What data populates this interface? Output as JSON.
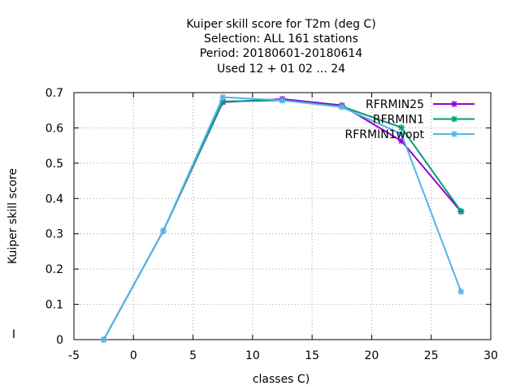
{
  "chart_data": {
    "type": "line",
    "title_lines": [
      "Kuiper skill score  for T2m (deg C)",
      "Selection: ALL    161 stations",
      "Period: 20180601-20180614",
      "Used  12 + 01 02 ... 24"
    ],
    "xlabel": "classes C)",
    "ylabel": "Kuiper skill score",
    "side_mark": "I",
    "xlim": [
      -5,
      30
    ],
    "ylim": [
      0,
      0.7
    ],
    "xticks": [
      -5,
      0,
      5,
      10,
      15,
      20,
      25,
      30
    ],
    "yticks": [
      0,
      0.1,
      0.2,
      0.3,
      0.4,
      0.5,
      0.6,
      0.7
    ],
    "xtick_labels": [
      "-5",
      "0",
      "5",
      "10",
      "15",
      "20",
      "25",
      "30"
    ],
    "ytick_labels": [
      "0",
      "0.1",
      "0.2",
      "0.3",
      "0.4",
      "0.5",
      "0.6",
      "0.7"
    ],
    "grid": true,
    "legend_position": "top-right",
    "series": [
      {
        "name": "RFRMIN25",
        "color": "#9400d3",
        "x": [
          -2.5,
          2.5,
          7.5,
          12.5,
          17.5,
          22.5,
          27.5
        ],
        "y": [
          0.0,
          0.308,
          0.673,
          0.682,
          0.664,
          0.563,
          0.363
        ]
      },
      {
        "name": "RFRMIN1",
        "color": "#009e73",
        "x": [
          -2.5,
          2.5,
          7.5,
          12.5,
          17.5,
          22.5,
          27.5
        ],
        "y": [
          0.0,
          0.308,
          0.675,
          0.678,
          0.661,
          0.601,
          0.364
        ]
      },
      {
        "name": "RFRMIN1wopt",
        "color": "#56b4e9",
        "x": [
          -2.5,
          2.5,
          7.5,
          12.5,
          17.5,
          22.5,
          27.5
        ],
        "y": [
          0.0,
          0.308,
          0.687,
          0.678,
          0.659,
          0.583,
          0.136
        ]
      }
    ]
  }
}
